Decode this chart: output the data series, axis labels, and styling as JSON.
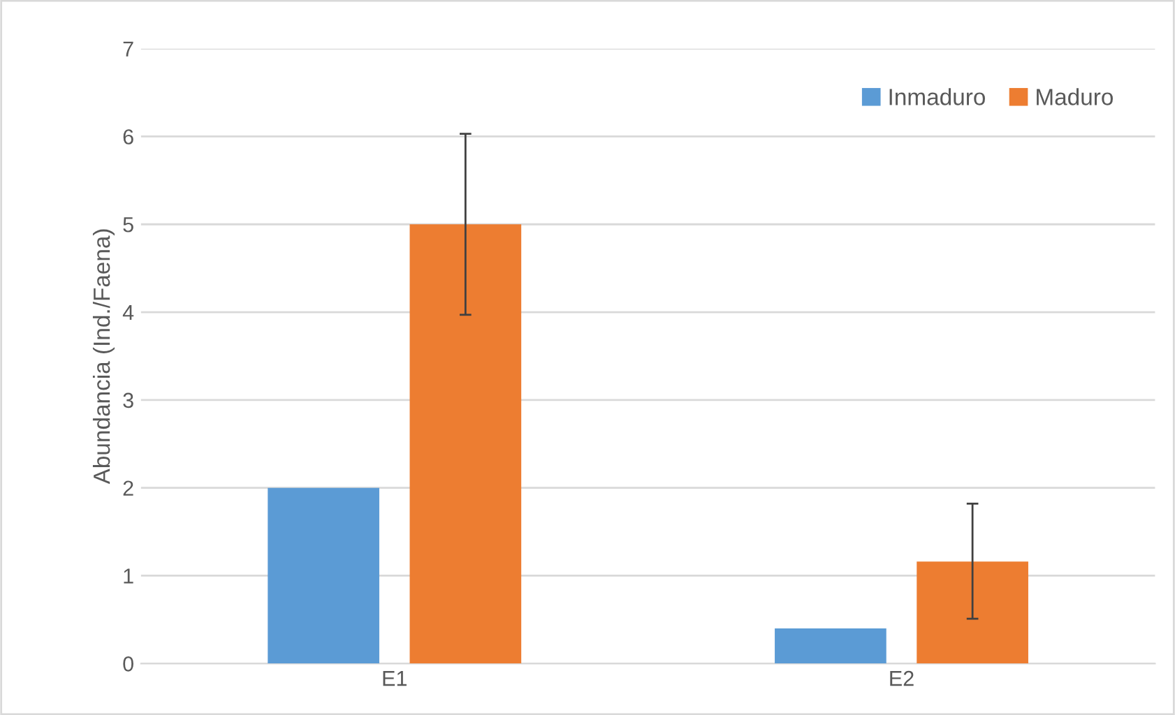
{
  "chart_data": {
    "type": "bar",
    "ylabel": "Abundancia (Ind./Faena)",
    "categories": [
      "E1",
      "E2"
    ],
    "series": [
      {
        "name": "Inmaduro",
        "color": "#5b9bd5",
        "values": [
          2.0,
          0.4
        ]
      },
      {
        "name": "Maduro",
        "color": "#ed7d31",
        "values": [
          5.0,
          1.16
        ],
        "errors": [
          [
            3.97,
            6.03
          ],
          [
            0.51,
            1.82
          ]
        ]
      }
    ],
    "ylim": [
      0,
      7
    ],
    "yticks": [
      0,
      1,
      2,
      3,
      4,
      5,
      6,
      7
    ],
    "grid": "y",
    "legend": "top right"
  }
}
